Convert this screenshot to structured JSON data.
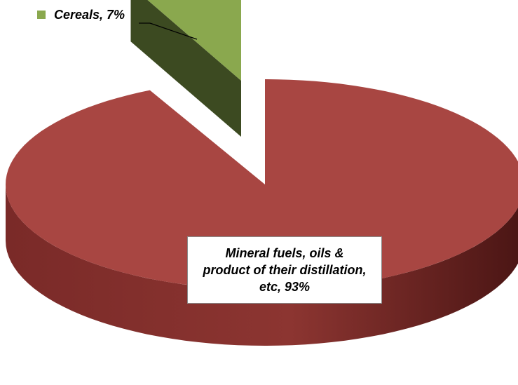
{
  "chart_data": {
    "type": "pie",
    "style": "3d-exploded",
    "title": "",
    "slices": [
      {
        "label": "Cereals",
        "value": 7,
        "value_label": "7%",
        "color": "#8aa84e",
        "exploded": true
      },
      {
        "label": "Mineral fuels, oils & product of their distillation, etc",
        "label_lines": [
          "Mineral fuels, oils &",
          "product of their distillation,",
          "etc, 93%"
        ],
        "value": 93,
        "value_label": "93%",
        "color": "#a84642",
        "exploded": false
      }
    ]
  },
  "labels": {
    "cereals": "Cereals, 7%"
  }
}
